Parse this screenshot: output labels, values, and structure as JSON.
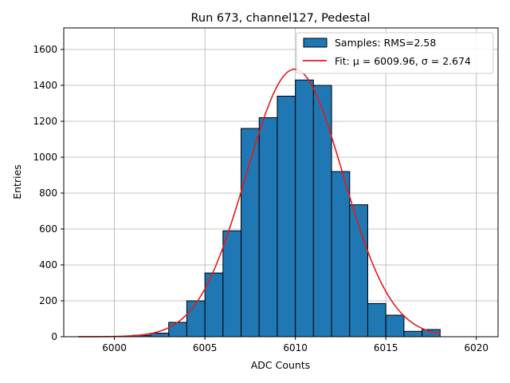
{
  "chart_data": {
    "type": "bar",
    "title": "Run 673, channel127, Pedestal",
    "xlabel": "ADC Counts",
    "ylabel": "Entries",
    "xlim": [
      5997.2,
      6021.2
    ],
    "ylim": [
      0,
      1720
    ],
    "xticks": [
      6000,
      6005,
      6010,
      6015,
      6020
    ],
    "yticks": [
      0,
      200,
      400,
      600,
      800,
      1000,
      1200,
      1400,
      1600
    ],
    "grid": true,
    "legend_position": "top-right",
    "histogram": {
      "name": "Samples: RMS=2.58",
      "color": "#1f77b4",
      "edgecolor": "#000000",
      "bin_edges": [
        6001,
        6002,
        6003,
        6004,
        6005,
        6006,
        6007,
        6008,
        6009,
        6010,
        6011,
        6012,
        6013,
        6014,
        6015,
        6016,
        6017,
        6018
      ],
      "counts": [
        8,
        20,
        80,
        200,
        355,
        590,
        1160,
        1220,
        1340,
        1430,
        1400,
        920,
        735,
        185,
        120,
        30,
        40
      ]
    },
    "fit": {
      "name": "Fit: μ = 6009.96, σ = 2.674",
      "color": "#e41a1c",
      "mu": 6009.96,
      "sigma": 2.674,
      "amplitude": 1490,
      "x_range": [
        5998,
        6018
      ]
    }
  }
}
